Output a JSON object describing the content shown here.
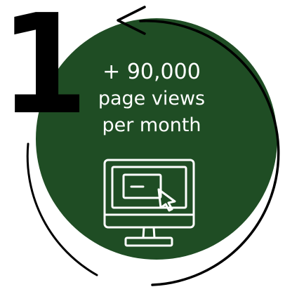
{
  "badge": {
    "number": "1",
    "value_line": "+ 90,000",
    "label_line_1": "page views",
    "label_line_2": "per month",
    "icon": "monitor-cursor-icon",
    "circle_color": "#1f4d24",
    "text_color": "#ffffff",
    "arrow_color": "#000000"
  }
}
